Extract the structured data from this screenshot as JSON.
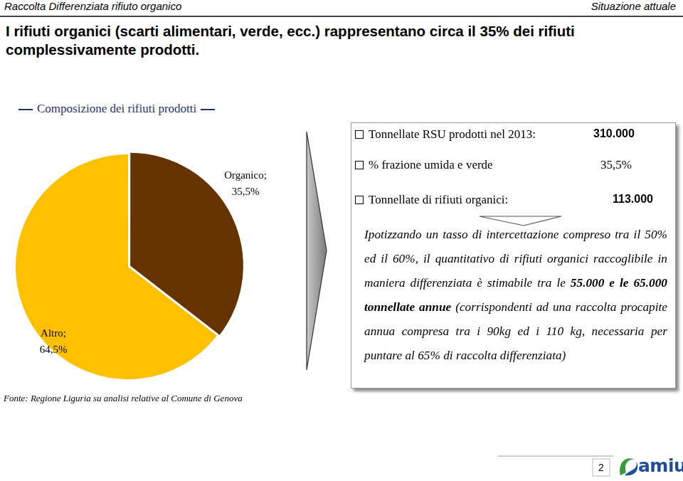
{
  "header": {
    "left": "Raccolta Differenziata rifiuto organico",
    "right": "Situazione attuale"
  },
  "headline": "I rifiuti organici (scarti alimentari, verde, ecc.) rappresentano circa il 35% dei rifiuti complessivamente prodotti.",
  "chart_data": {
    "type": "pie",
    "title": "Composizione dei rifiuti prodotti",
    "categories": [
      "Organico",
      "Altro"
    ],
    "values": [
      35.5,
      64.5
    ],
    "value_labels": [
      "Organico; 35,5%",
      "Altro; 64,5%"
    ],
    "colors": [
      "#663300",
      "#ffc000"
    ],
    "data_labels": true
  },
  "source": "Fonte: Regione Liguria su analisi relative al Comune di Genova",
  "facts": [
    {
      "label": "Tonnellate RSU prodotti nel 2013:",
      "value": "310.000"
    },
    {
      "label": "% frazione umida e verde",
      "value": "35,5%"
    },
    {
      "label": "Tonnellate di rifiuti organici:",
      "value": "113.000"
    }
  ],
  "note": [
    {
      "text": "Ipotizzando un tasso di intercettazione compreso tra il 50% ed il 60%, il quantitativo di rifiuti organici raccoglibile in maniera differenziata è stimabile tra le ",
      "bold": false
    },
    {
      "text": "55.000 e le 65.000 tonnellate annue",
      "bold": true
    },
    {
      "text": " (corrispondenti ad una raccolta procapite annua compresa tra i 90kg ed i 110 kg, necessaria per puntare al 65% di raccolta differenziata)",
      "bold": false
    }
  ],
  "footer": {
    "page": "2",
    "logo": "amiu"
  }
}
